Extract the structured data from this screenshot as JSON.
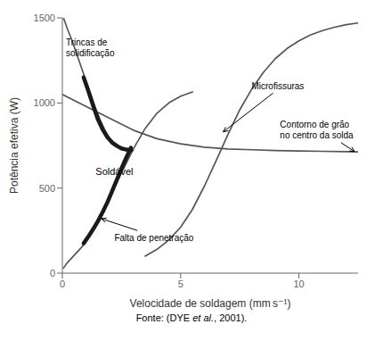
{
  "chart_data": {
    "type": "line",
    "xlabel": "Velocidade de soldagem (mm s⁻¹)",
    "ylabel": "Potência efetiva (W)",
    "xlim": [
      0,
      12.5
    ],
    "ylim": [
      0,
      1500
    ],
    "xticks": [
      0,
      5,
      10
    ],
    "yticks": [
      0,
      500,
      1000,
      1500
    ],
    "series": [
      {
        "color": "#555555",
        "x": [
          0.05,
          0.1,
          0.2,
          0.4,
          0.6,
          0.8,
          1.0,
          1.2,
          1.4,
          1.6,
          1.8,
          2.0,
          2.2,
          2.4,
          2.6,
          2.8,
          3.0
        ],
        "values": [
          1500,
          1480,
          1440,
          1370,
          1290,
          1210,
          1130,
          1050,
          970,
          900,
          840,
          790,
          760,
          740,
          730,
          725,
          722
        ]
      },
      {
        "color": "#555555",
        "x": [
          0.05,
          0.1,
          0.2,
          0.4,
          0.6,
          0.8,
          1.0,
          1.2,
          1.4,
          1.6,
          1.8,
          2.0,
          2.5,
          3.0,
          3.5,
          4.0,
          4.5,
          5.0,
          5.5
        ],
        "values": [
          30,
          40,
          60,
          90,
          120,
          150,
          185,
          225,
          270,
          320,
          375,
          440,
          590,
          730,
          850,
          940,
          1000,
          1040,
          1065
        ]
      },
      {
        "color": "#555555",
        "x": [
          3.5,
          4.0,
          4.5,
          5.0,
          5.5,
          6.0,
          6.5,
          7.0,
          7.5,
          8.0,
          8.5,
          9.0,
          9.5,
          10.0,
          10.5,
          11.0,
          11.5,
          12.0,
          12.5
        ],
        "values": [
          100,
          140,
          195,
          270,
          375,
          510,
          660,
          815,
          960,
          1080,
          1180,
          1260,
          1320,
          1365,
          1400,
          1425,
          1445,
          1460,
          1470
        ]
      },
      {
        "color": "#555555",
        "x": [
          0.0,
          1.0,
          2.0,
          3.0,
          4.0,
          5.0,
          6.0,
          7.0,
          8.0,
          9.0,
          10.0,
          11.0,
          12.0,
          12.5
        ],
        "values": [
          1050,
          980,
          910,
          840,
          790,
          760,
          740,
          730,
          725,
          720,
          718,
          716,
          714,
          713
        ]
      },
      {
        "color": "#1a1a1a",
        "x": [
          0.9,
          1.1,
          1.3,
          1.5,
          1.7,
          1.9,
          2.1,
          2.3,
          2.5,
          2.7,
          2.9
        ],
        "values": [
          1150,
          1070,
          985,
          905,
          845,
          800,
          768,
          748,
          733,
          726,
          722
        ]
      },
      {
        "color": "#1a1a1a",
        "x": [
          0.9,
          1.1,
          1.3,
          1.5,
          1.7,
          1.9,
          2.1,
          2.3,
          2.5,
          2.7,
          2.9
        ],
        "values": [
          175,
          215,
          258,
          305,
          358,
          415,
          480,
          548,
          615,
          678,
          737
        ]
      }
    ],
    "annotations": [
      {
        "text": "Trincas de\nsolidificação",
        "x": 0.55,
        "y": 1320,
        "text_x": 0.15,
        "text_y": 1390
      },
      {
        "text": "Falta de penetração",
        "x": 1.65,
        "y": 320,
        "text_x": 2.2,
        "text_y": 240
      },
      {
        "text": "Microfissuras",
        "x": 6.8,
        "y": 830,
        "text_x": 8.0,
        "text_y": 1100
      },
      {
        "text": "Contorno de grão\nno centro da solda",
        "x": 12.35,
        "y": 714,
        "text_x": 9.2,
        "text_y": 840
      },
      {
        "text": "Soldável",
        "x": 2.2,
        "y": 600
      }
    ],
    "source": "Fonte: (DYE et al., 2001).",
    "source_italic": "et al."
  }
}
